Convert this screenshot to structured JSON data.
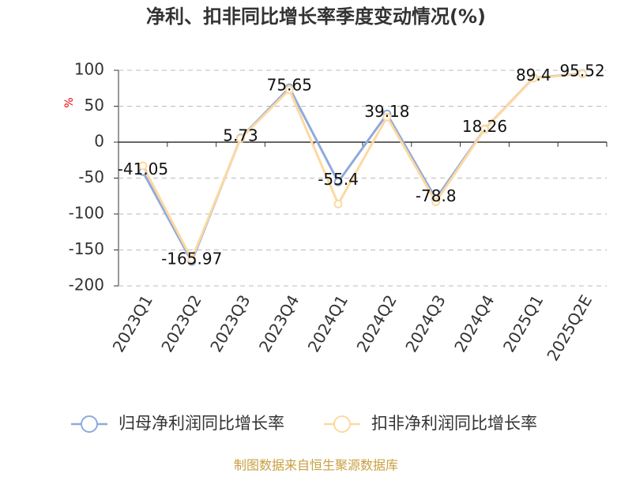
{
  "chart_data": {
    "type": "line",
    "title": "净利、扣非同比增长率季度变动情况(%)",
    "y_label": "%",
    "categories": [
      "2023Q1",
      "2023Q2",
      "2023Q3",
      "2023Q4",
      "2024Q1",
      "2024Q2",
      "2024Q3",
      "2024Q4",
      "2025Q1",
      "2025Q2E"
    ],
    "series": [
      {
        "name": "归母净利润同比增长率",
        "color": "#8faadc",
        "values": [
          -41.05,
          -165.97,
          5.73,
          75.65,
          -55.4,
          39.18,
          -78.8,
          18.26,
          89.4,
          95.52
        ],
        "show_labels": true
      },
      {
        "name": "扣非净利润同比增长率",
        "color": "#fdd9a0",
        "values": [
          -33,
          -163,
          5,
          73,
          -86,
          35,
          -83,
          18,
          89,
          95
        ],
        "show_labels": false
      }
    ],
    "ylim": [
      -200,
      100
    ],
    "yticks": [
      -200,
      -150,
      -100,
      -50,
      0,
      50,
      100
    ],
    "grid": true,
    "source": "制图数据来自恒生聚源数据库"
  }
}
